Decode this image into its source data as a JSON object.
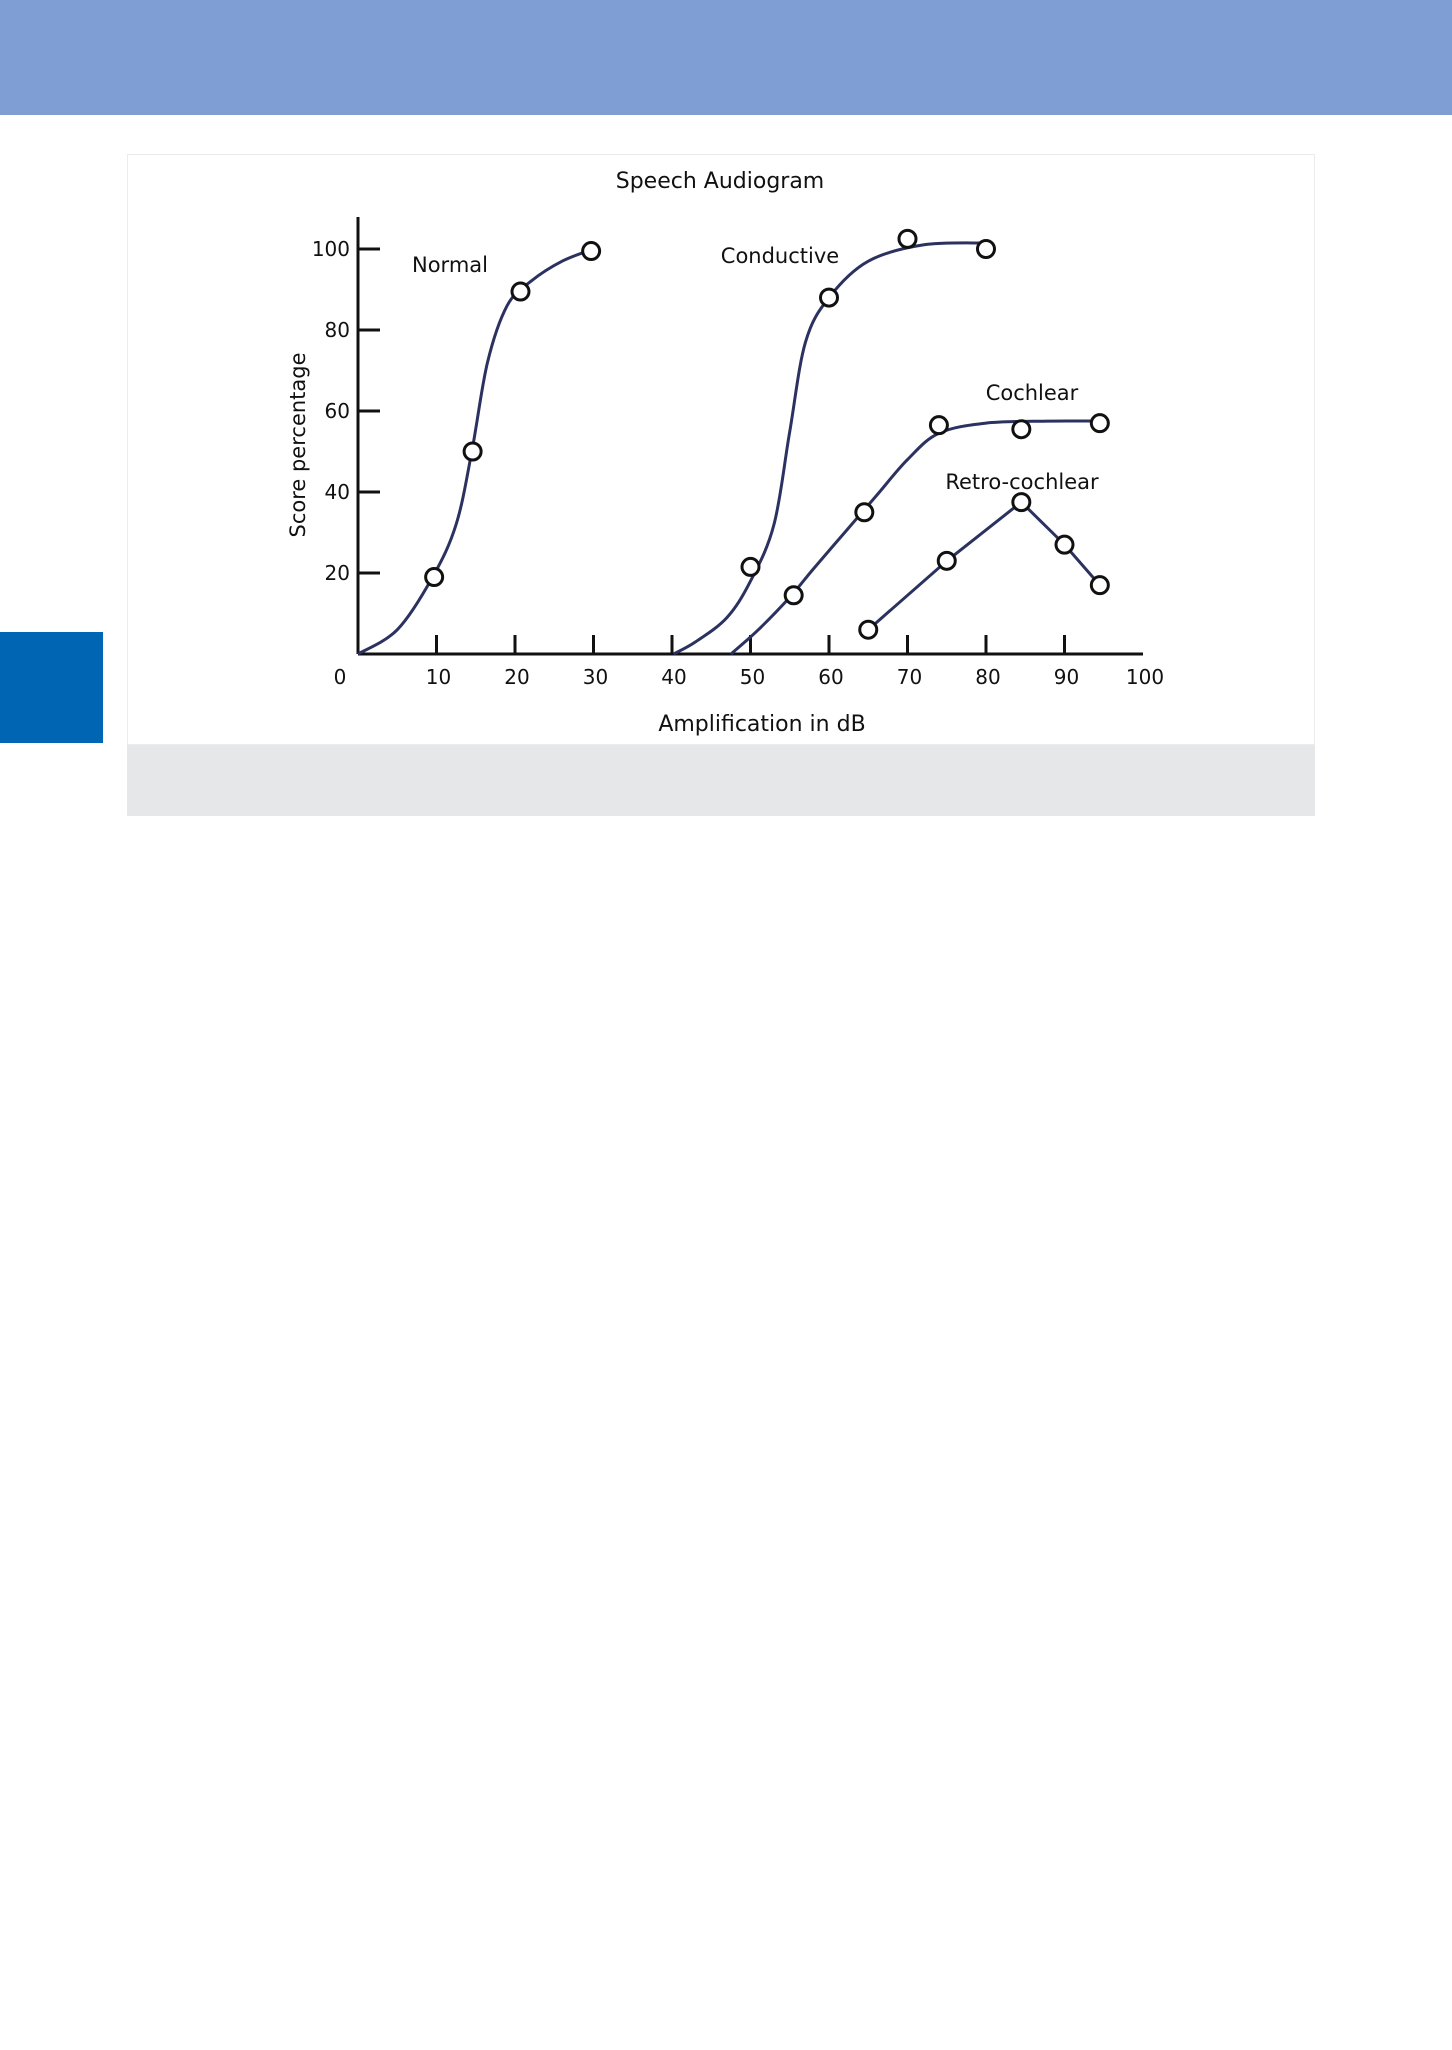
{
  "colors": {
    "banner": "#7f9fd4",
    "side_tab": "#0066b3",
    "curve": "#2b3260",
    "axis": "#111111",
    "caption_strip": "#e6e7e8"
  },
  "chart_data": {
    "type": "line",
    "title": "Speech Audiogram",
    "xlabel": "Amplification in dB",
    "ylabel": "Score percentage",
    "xlim": [
      0,
      100
    ],
    "ylim": [
      0,
      100
    ],
    "x_ticks": [
      10,
      20,
      30,
      40,
      50,
      60,
      70,
      80,
      90,
      100
    ],
    "y_ticks": [
      20,
      40,
      60,
      80,
      100
    ],
    "origin_label": "0",
    "grid": false,
    "series": [
      {
        "name": "Normal",
        "smooth": true,
        "curve": [
          [
            0,
            0
          ],
          [
            5,
            6
          ],
          [
            9.5,
            19
          ],
          [
            12.5,
            32
          ],
          [
            14.5,
            50
          ],
          [
            16.5,
            72
          ],
          [
            19,
            86
          ],
          [
            22,
            92
          ],
          [
            26,
            97
          ],
          [
            30,
            100
          ]
        ],
        "points": [
          [
            9.7,
            19
          ],
          [
            14.6,
            50
          ],
          [
            20.7,
            89.5
          ],
          [
            29.7,
            99.5
          ]
        ]
      },
      {
        "name": "Conductive",
        "smooth": true,
        "curve": [
          [
            40.2,
            0
          ],
          [
            43,
            3
          ],
          [
            47,
            9
          ],
          [
            50,
            18
          ],
          [
            53,
            32
          ],
          [
            55,
            55
          ],
          [
            57,
            77
          ],
          [
            60,
            88
          ],
          [
            65,
            97
          ],
          [
            72,
            101
          ],
          [
            80,
            101.5
          ]
        ],
        "points": [
          [
            50,
            21.5
          ],
          [
            60,
            88
          ],
          [
            70,
            102.5
          ],
          [
            80,
            100
          ]
        ]
      },
      {
        "name": "Cochlear",
        "smooth": true,
        "curve": [
          [
            47.5,
            0
          ],
          [
            51,
            6
          ],
          [
            55,
            14
          ],
          [
            58,
            21
          ],
          [
            62,
            30
          ],
          [
            66,
            39
          ],
          [
            70,
            48
          ],
          [
            74,
            54.5
          ],
          [
            80,
            57
          ],
          [
            88,
            57.5
          ],
          [
            94,
            57.5
          ]
        ],
        "points": [
          [
            55.5,
            14.5
          ],
          [
            64.5,
            35
          ],
          [
            74,
            56.5
          ],
          [
            84.5,
            55.5
          ],
          [
            94.5,
            57
          ]
        ]
      },
      {
        "name": "Retro-cochlear",
        "smooth": false,
        "curve": [
          [
            65,
            6
          ],
          [
            75,
            23
          ],
          [
            84.5,
            37.5
          ],
          [
            90,
            27
          ],
          [
            94.5,
            17
          ]
        ],
        "points": [
          [
            65,
            6
          ],
          [
            75,
            23
          ],
          [
            84.5,
            37.5
          ],
          [
            90,
            27
          ],
          [
            94.5,
            17
          ]
        ]
      }
    ]
  }
}
